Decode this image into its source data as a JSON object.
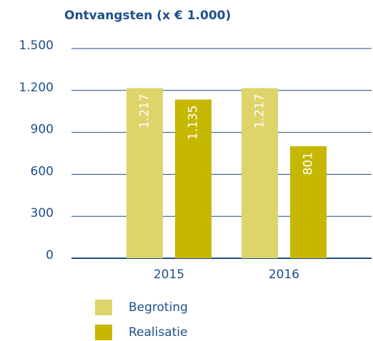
{
  "chart_data": {
    "type": "bar",
    "title": "Ontvangsten (x € 1.000)",
    "categories": [
      "2015",
      "2016"
    ],
    "series": [
      {
        "name": "Begroting",
        "color": "#ddd46a",
        "values": [
          1217,
          1217
        ],
        "value_labels": [
          "1.217",
          "1.217"
        ]
      },
      {
        "name": "Realisatie",
        "color": "#c6b700",
        "values": [
          1135,
          801
        ],
        "value_labels": [
          "1.135",
          "801"
        ]
      }
    ],
    "ylim": [
      0,
      1500
    ],
    "yticks": [
      0,
      300,
      600,
      900,
      {
        "value": 1200,
        "label": "1.200"
      },
      {
        "value": 1500,
        "label": "1.500"
      }
    ],
    "grid": true
  }
}
